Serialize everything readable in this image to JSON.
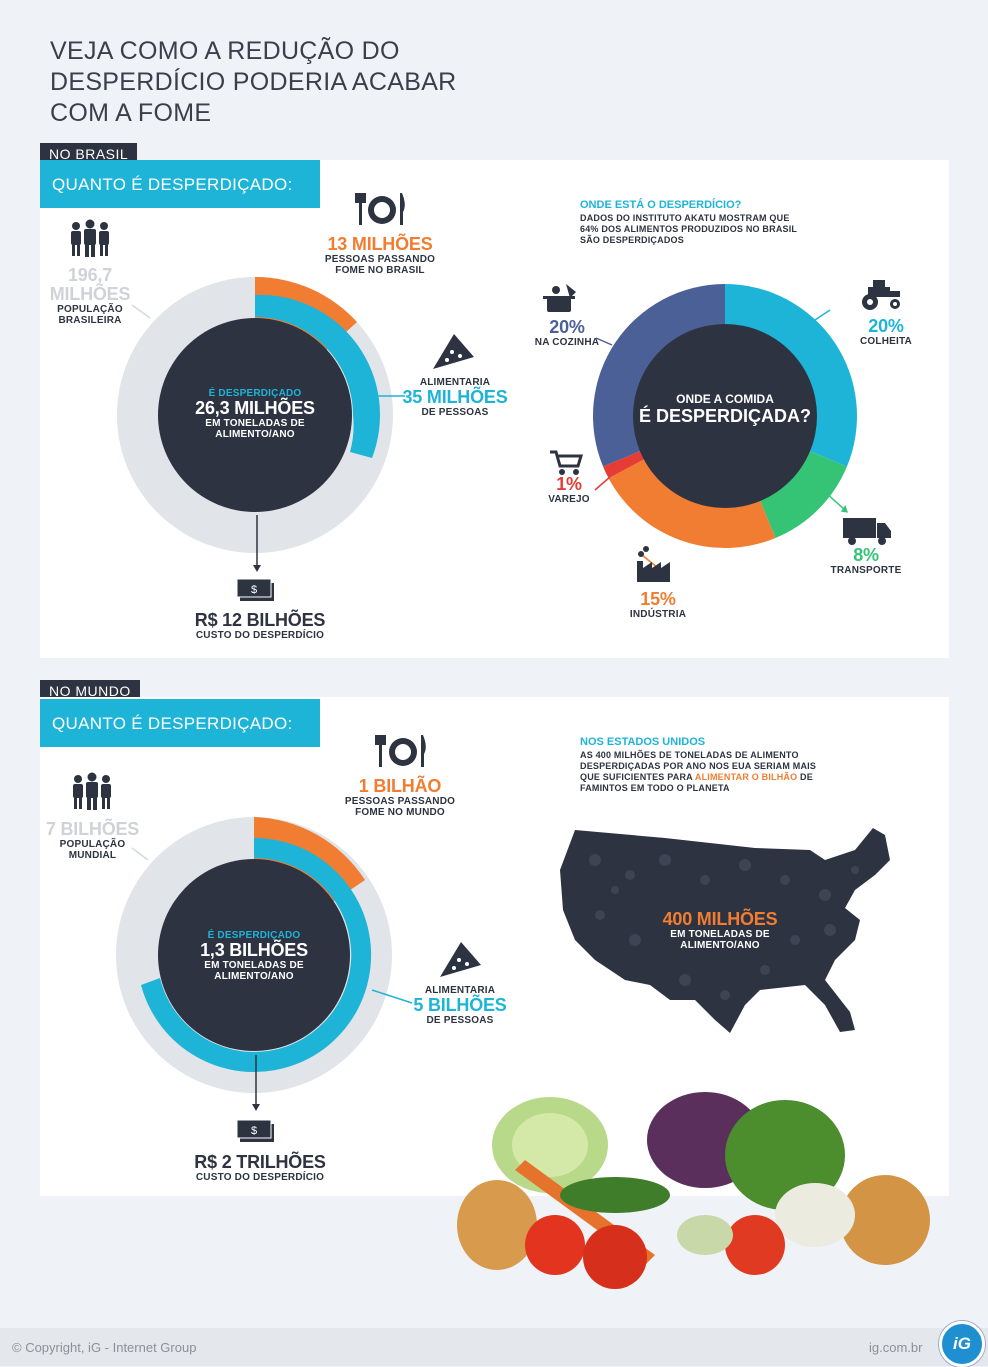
{
  "title_lines": [
    "VEJA COMO A REDUÇÃO DO",
    "DESPERDÍCIO PODERIA ACABAR",
    "COM A FOME"
  ],
  "brasil": {
    "tag": "NO BRASIL",
    "question": "QUANTO É DESPERDIÇADO:",
    "population": {
      "value": "196,7",
      "unit": "MILHÕES",
      "label1": "POPULAÇÃO",
      "label2": "BRASILEIRA"
    },
    "hunger": {
      "value": "13 MILHÕES",
      "label1": "PESSOAS PASSANDO",
      "label2": "FOME NO BRASIL"
    },
    "wasted": {
      "pre": "É DESPERDIÇADO",
      "value": "26,3 MILHÕES",
      "label1": "EM TONELADAS DE",
      "label2": "ALIMENTO/ANO"
    },
    "feeds": {
      "pre": "ALIMENTARIA",
      "value": "35 MILHÕES",
      "label": "DE PESSOAS"
    },
    "cost": {
      "value": "R$ 12 BILHÕES",
      "label": "CUSTO DO DESPERDÍCIO"
    },
    "where_title": "ONDE ESTÁ O DESPERDÍCIO?",
    "where_text": [
      "DADOS DO INSTITUTO AKATU MOSTRAM QUE",
      "64% DOS ALIMENTOS PRODUZIDOS NO BRASIL",
      "SÃO DESPERDIÇADOS"
    ],
    "donut_center": [
      "ONDE A COMIDA",
      "É DESPERDIÇADA?"
    ]
  },
  "mundo": {
    "tag": "NO MUNDO",
    "question": "QUANTO É DESPERDIÇADO:",
    "population": {
      "value": "7 BILHÕES",
      "label1": "POPULAÇÃO",
      "label2": "MUNDIAL"
    },
    "hunger": {
      "value": "1 BILHÃO",
      "label1": "PESSOAS PASSANDO",
      "label2": "FOME NO MUNDO"
    },
    "wasted": {
      "pre": "É DESPERDIÇADO",
      "value": "1,3 BILHÕES",
      "label1": "EM TONELADAS DE",
      "label2": "ALIMENTO/ANO"
    },
    "feeds": {
      "pre": "ALIMENTARIA",
      "value": "5 BILHÕES",
      "label": "DE PESSOAS"
    },
    "cost": {
      "value": "R$ 2 TRILHÕES",
      "label": "CUSTO DO DESPERDÍCIO"
    },
    "usa_title": "NOS ESTADOS UNIDOS",
    "usa_text1": "AS 400 MILHÕES DE TONELADAS DE ALIMENTO",
    "usa_text2": "DESPERDIÇADAS POR ANO NOS EUA SERIAM  MAIS",
    "usa_text3a": "QUE SUFICIENTES PARA",
    "usa_highlight": "ALIMENTAR O BILHÃO",
    "usa_text3b": "DE",
    "usa_text4": "FAMINTOS EM TODO O PLANETA",
    "usa_value": "400 MILHÕES",
    "usa_label1": "EM TONELADAS DE",
    "usa_label2": "ALIMENTO/ANO"
  },
  "footer": {
    "copyright": "© Copyright, iG - Internet Group",
    "site": "ig.com.br",
    "logo": "iG"
  },
  "colors": {
    "cyan": "#1eb4d8",
    "orange": "#f07d31",
    "dark": "#2d3340",
    "grey": "#e1e4e8",
    "green": "#35c475",
    "red": "#e53d35",
    "blue": "#4c6098"
  },
  "chart_data": [
    {
      "type": "pie",
      "title": "ONDE A COMIDA É DESPERDIÇADA?",
      "categories": [
        "COLHEITA",
        "TRANSPORTE",
        "INDÚSTRIA",
        "VAREJO",
        "NA COZINHA"
      ],
      "values": [
        20,
        8,
        15,
        1,
        20
      ],
      "labels": [
        "20%",
        "8%",
        "15%",
        "1%",
        "20%"
      ],
      "colors": [
        "#1eb4d8",
        "#35c475",
        "#f07d31",
        "#e53d35",
        "#4c6098"
      ]
    }
  ]
}
